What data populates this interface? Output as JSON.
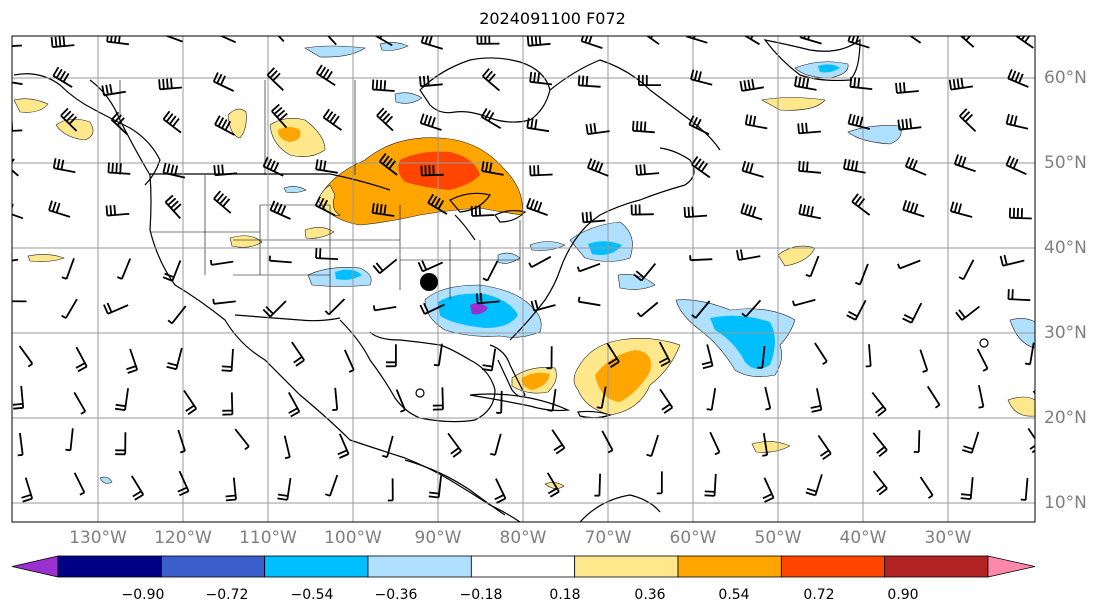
{
  "title": "2024091100 F072",
  "lat_labels": [
    "60°N",
    "50°N",
    "40°N",
    "30°N",
    "20°N",
    "10°N"
  ],
  "lon_labels": [
    "130°W",
    "120°W",
    "110°W",
    "100°W",
    "90°W",
    "80°W",
    "70°W",
    "60°W",
    "50°W",
    "40°W",
    "30°W"
  ],
  "colorbar": {
    "ticks": [
      "−0.90",
      "−0.72",
      "−0.54",
      "−0.36",
      "−0.18",
      "0.18",
      "0.36",
      "0.54",
      "0.72",
      "0.90"
    ],
    "colors": [
      "#9b30d0",
      "#000087",
      "#3a5fcd",
      "#00bfff",
      "#b0e0ff",
      "#ffffff",
      "#ffe88c",
      "#ffa500",
      "#ff4500",
      "#b22222",
      "#ff88aa"
    ],
    "extend": "both"
  },
  "map": {
    "projection": "plate carree",
    "grid": true,
    "lon_range": [
      "137°W",
      "18°W"
    ],
    "lat_range": [
      "8°N",
      "65°N"
    ],
    "overlay": "wind barbs",
    "marker": "black dot"
  }
}
